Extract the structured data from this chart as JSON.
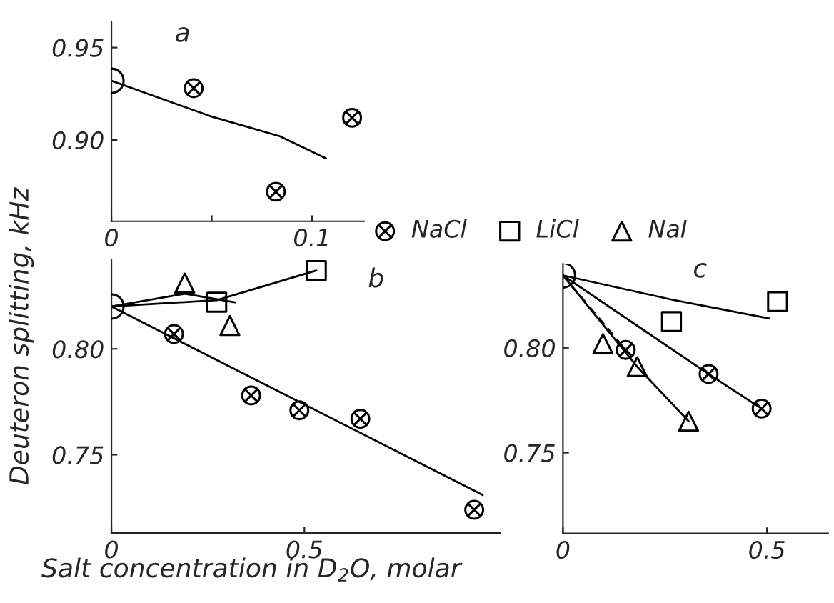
{
  "chart_data": [
    {
      "type": "scatter",
      "annotations": [
        "a"
      ],
      "xlim": [
        0,
        0.126
      ],
      "ylim": [
        0.856,
        0.964
      ],
      "xticks": [
        0,
        {
          "value": 0.05,
          "label": null
        },
        0.1
      ],
      "yticks": [
        {
          "value": 0.9,
          "label": "0.90"
        },
        0.95
      ],
      "series": [
        {
          "type": "line",
          "color": "#000000",
          "x": [
            0,
            0.049,
            0.084,
            0.107
          ],
          "values": [
            0.932,
            0.913,
            0.902,
            0.89
          ]
        },
        {
          "marker": "circle",
          "color": "#000000",
          "x": [
            0
          ],
          "values": [
            0.932
          ]
        },
        {
          "marker": "cross",
          "color": "#000000",
          "x": [
            0.041,
            0.082,
            0.12
          ],
          "values": [
            0.928,
            0.872,
            0.912
          ]
        }
      ]
    },
    {
      "type": "scatter",
      "annotations": [
        "b"
      ],
      "ylabel": "Deuteron splitting, kHz",
      "xlabel": "Salt concentration in D$_{2}$O, molar",
      "xlim": [
        0,
        1.007
      ],
      "ylim": [
        0.713,
        0.842
      ],
      "xticks": [
        0,
        0.5
      ],
      "yticks": [
        {
          "value": 0.75,
          "label": "0.75"
        },
        {
          "value": 0.8,
          "label": "0.80"
        }
      ],
      "series": [
        {
          "type": "line",
          "color": "#000000",
          "x": [
            0,
            0.962
          ],
          "values": [
            0.82,
            0.731
          ]
        },
        {
          "type": "line",
          "color": "#000000",
          "x": [
            0,
            0.273,
            0.531
          ],
          "values": [
            0.82,
            0.823,
            0.837
          ]
        },
        {
          "type": "line",
          "color": "#000000",
          "x": [
            0,
            0.19,
            0.32
          ],
          "values": [
            0.82,
            0.826,
            0.822
          ]
        },
        {
          "marker": "circle",
          "color": "#000000",
          "x": [
            0
          ],
          "values": [
            0.82
          ]
        },
        {
          "marker": "cross",
          "color": "#000000",
          "x": [
            0.162,
            0.362,
            0.487,
            0.645,
            0.94
          ],
          "values": [
            0.807,
            0.778,
            0.771,
            0.767,
            0.724
          ]
        },
        {
          "marker": "square",
          "color": "#000000",
          "x": [
            0.273,
            0.531
          ],
          "values": [
            0.822,
            0.837
          ]
        },
        {
          "marker": "triangle",
          "color": "#000000",
          "x": [
            0.19,
            0.307
          ],
          "values": [
            0.831,
            0.811
          ]
        }
      ]
    },
    {
      "type": "scatter",
      "annotations": [
        "c"
      ],
      "legend": "top",
      "xlim": [
        0,
        0.65
      ],
      "ylim": [
        0.7115,
        0.84
      ],
      "xticks": [
        0,
        0.5
      ],
      "yticks": [
        {
          "value": 0.75,
          "label": "0.75"
        },
        {
          "value": 0.8,
          "label": "0.80"
        }
      ],
      "series": [
        {
          "type": "line",
          "color": "#000000",
          "x": [
            0,
            0.266,
            0.505
          ],
          "values": [
            0.8345,
            0.823,
            0.814
          ]
        },
        {
          "type": "line",
          "color": "#000000",
          "x": [
            0,
            0.357,
            0.487
          ],
          "values": [
            0.8345,
            0.7875,
            0.771
          ]
        },
        {
          "type": "line",
          "color": "#000000",
          "x": [
            0,
            0.182,
            0.308
          ],
          "values": [
            0.8345,
            0.791,
            0.765
          ]
        },
        {
          "type": "line",
          "color": "#000000",
          "line_style": "dashed",
          "x": [
            0,
            0.154
          ],
          "values": [
            0.8345,
            0.799
          ]
        },
        {
          "marker": "circle",
          "color": "#000000",
          "x": [
            0
          ],
          "values": [
            0.8345
          ]
        },
        {
          "name": "NaCl",
          "marker": "cross",
          "color": "#000000",
          "x": [
            0.154,
            0.357,
            0.487
          ],
          "values": [
            0.799,
            0.7875,
            0.771
          ]
        },
        {
          "name": "LiCl",
          "marker": "square",
          "color": "#000000",
          "x": [
            0.266,
            0.526
          ],
          "values": [
            0.8125,
            0.822
          ]
        },
        {
          "name": "NaI",
          "marker": "triangle",
          "color": "#000000",
          "x": [
            0.098,
            0.182,
            0.308
          ],
          "values": [
            0.802,
            0.791,
            0.765
          ]
        }
      ]
    }
  ]
}
